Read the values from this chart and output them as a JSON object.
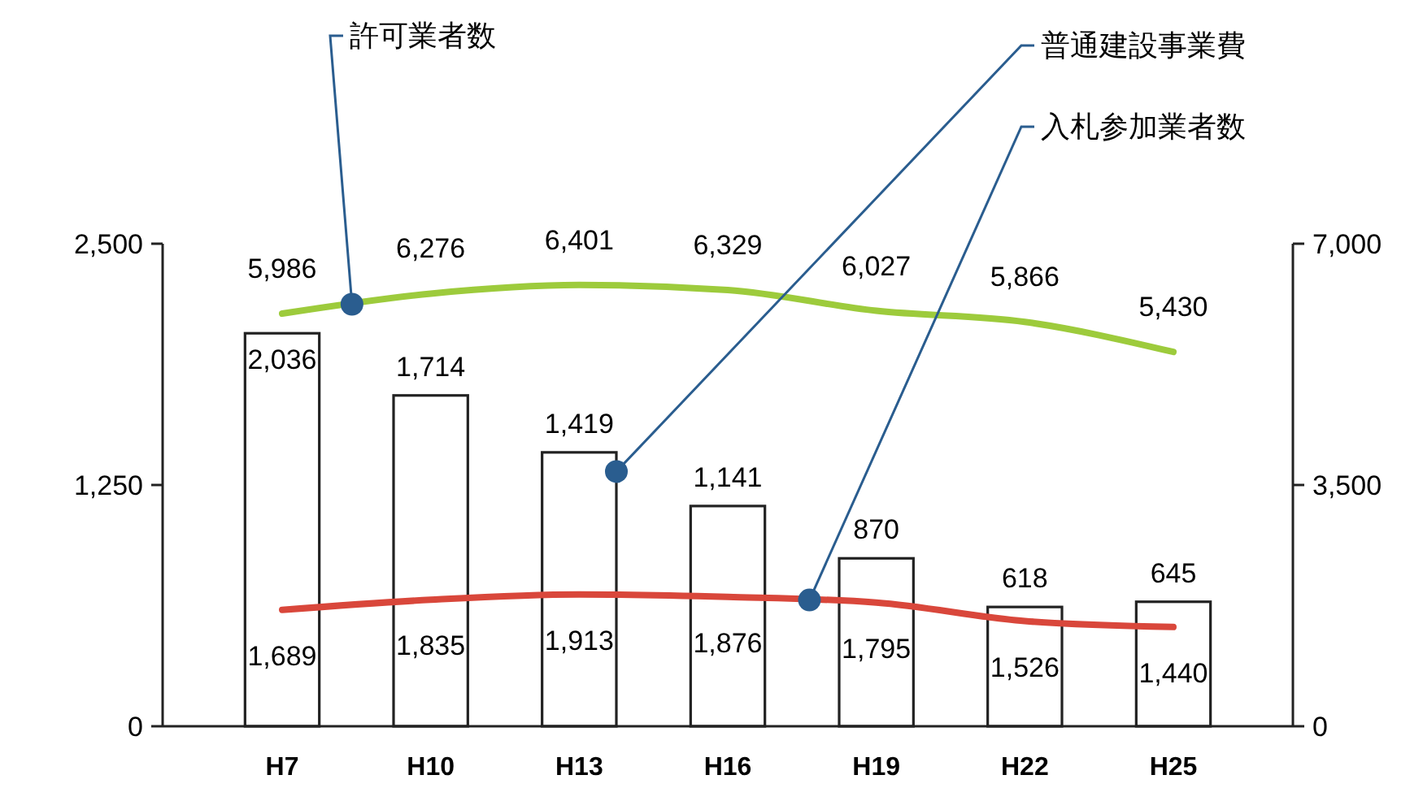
{
  "chart_data": {
    "type": "bar",
    "categories": [
      "H7",
      "H10",
      "H13",
      "H16",
      "H19",
      "H22",
      "H25"
    ],
    "series": [
      {
        "name": "普通建設事業費",
        "color": "#ffffff",
        "values": [
          2036,
          1714,
          1419,
          1141,
          870,
          618,
          645
        ],
        "value_labels": [
          "2,036",
          "1,714",
          "1,419",
          "1,141",
          "870",
          "618",
          "645"
        ]
      },
      {
        "name": "許可業者数",
        "type": "line",
        "axis": "y2",
        "color": "#9dcb3c",
        "values": [
          5986,
          6276,
          6401,
          6329,
          6027,
          5866,
          5430
        ],
        "value_labels": [
          "5,986",
          "6,276",
          "6,401",
          "6,329",
          "6,027",
          "5,866",
          "5,430"
        ]
      },
      {
        "name": "入札参加業者数",
        "type": "line",
        "axis": "y2",
        "color": "#d9473b",
        "values": [
          1689,
          1835,
          1913,
          1876,
          1795,
          1526,
          1440
        ],
        "value_labels": [
          "1,689",
          "1,835",
          "1,913",
          "1,876",
          "1,795",
          "1,526",
          "1,440"
        ]
      }
    ],
    "ylim": [
      0,
      2500
    ],
    "yticks": [
      {
        "value": 0,
        "label": "0"
      },
      {
        "value": 1250,
        "label": "1,250"
      },
      {
        "value": 2500,
        "label": "2,500"
      }
    ],
    "y2lim": [
      0,
      7000
    ],
    "y2ticks": [
      {
        "value": 0,
        "label": "0"
      },
      {
        "value": 3500,
        "label": "3,500"
      },
      {
        "value": 7000,
        "label": "7,000"
      }
    ],
    "marker": "none",
    "grid": false,
    "legend": false
  }
}
